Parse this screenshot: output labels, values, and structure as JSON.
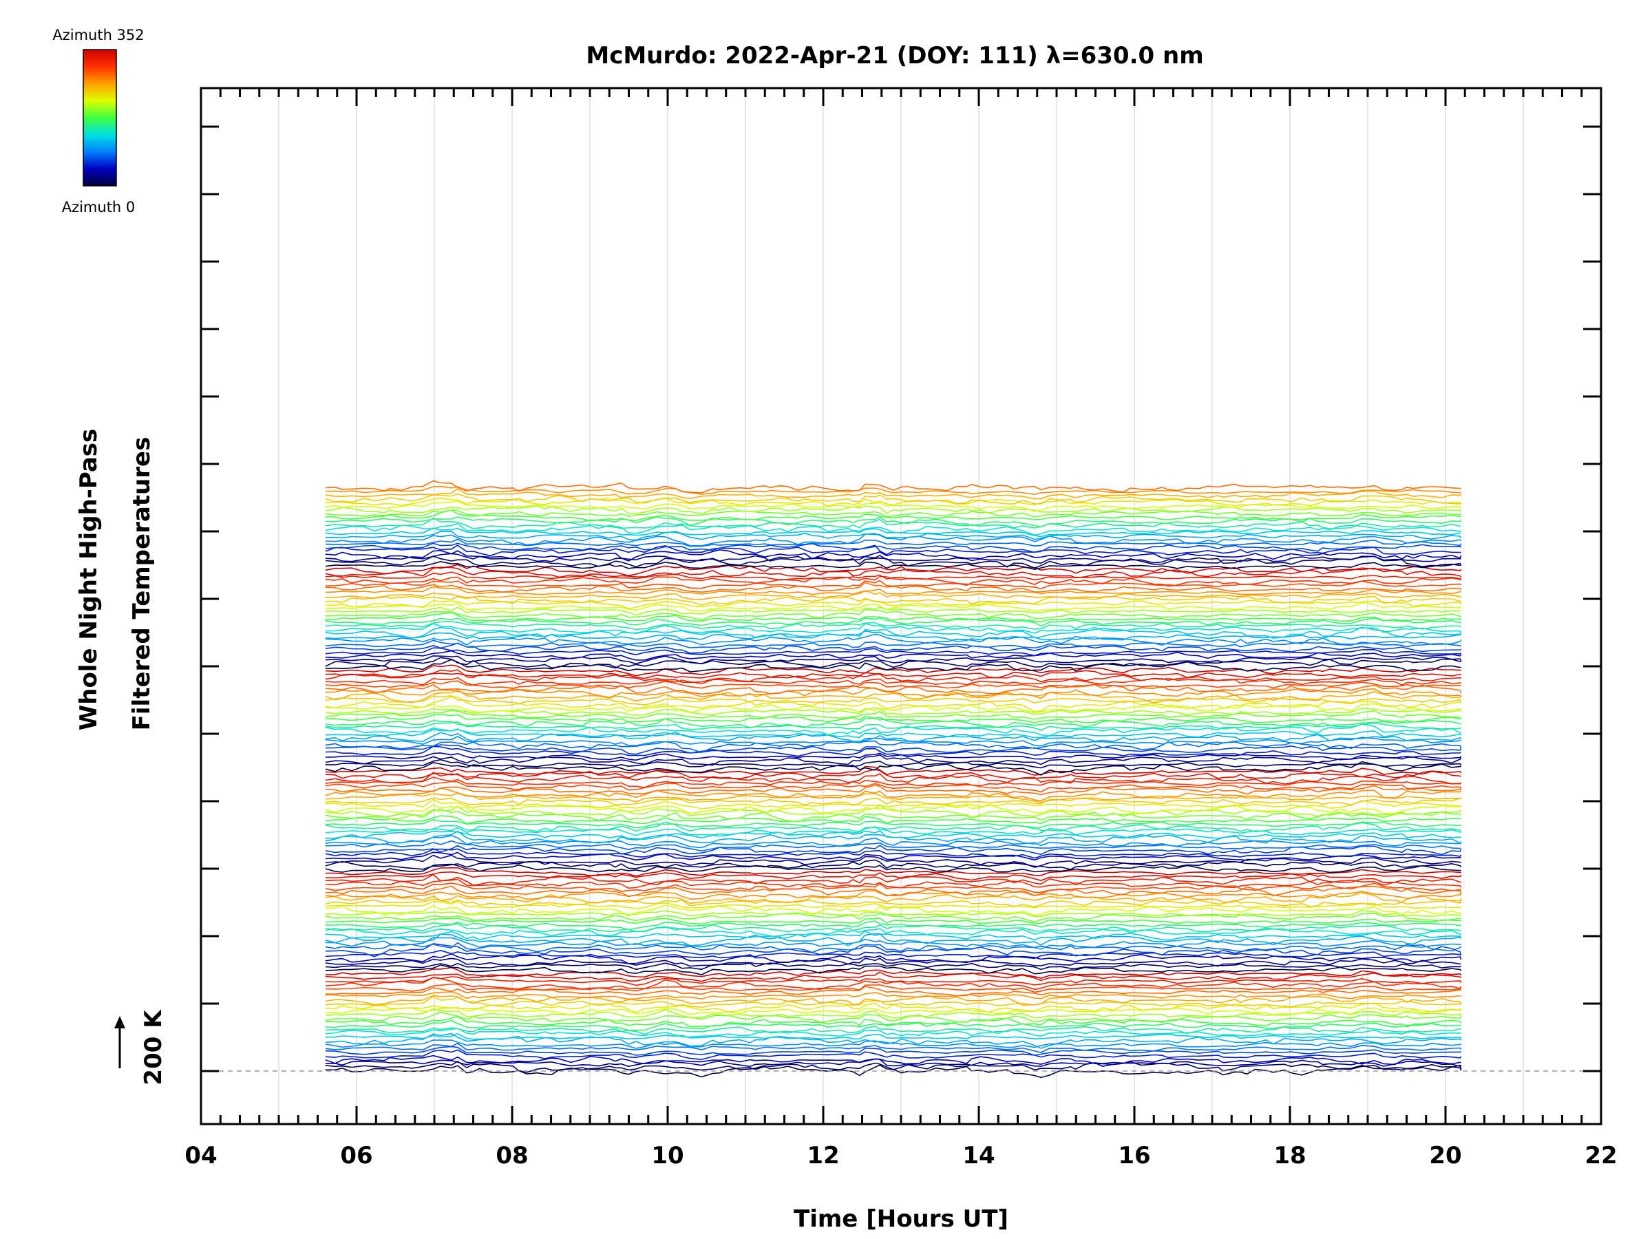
{
  "chart_data": {
    "type": "line",
    "title": "McMurdo: 2022-Apr-21 (DOY: 111) λ=630.0 nm",
    "xlabel": "Time [Hours UT]",
    "ylabel_line1": "Whole Night High-Pass",
    "ylabel_line2": "Filtered Temperatures",
    "scale_marker": "200 K",
    "xlim": [
      4,
      22
    ],
    "x_tick_labels": [
      "04",
      "06",
      "08",
      "10",
      "12",
      "14",
      "16",
      "18",
      "20",
      "22"
    ],
    "x_data_range": [
      5.6,
      20.2
    ],
    "grid": "vertical, every 1 hour",
    "n_traces": 157,
    "trace_spacing_units": 1,
    "colorbar": {
      "label_top": "Azimuth 352",
      "label_bottom": "Azimuth 0",
      "range": [
        0,
        352
      ],
      "colors": [
        "#000040",
        "#0000c0",
        "#0080ff",
        "#00e0e0",
        "#40ff40",
        "#e0ff00",
        "#ffa000",
        "#ff3000",
        "#d00000"
      ]
    },
    "baseline_style": "dashed gray",
    "series_note": "stacked filtered temperature traces, one per azimuth sample, color-coded by azimuth"
  }
}
